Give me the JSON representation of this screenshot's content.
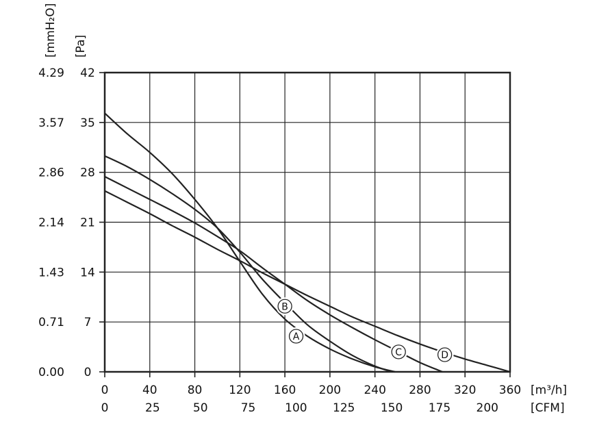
{
  "chart_data": {
    "type": "line",
    "x_unit_primary": "[m³/h]",
    "x_unit_secondary": "[CFM]",
    "y_unit_primary": "[Pa]",
    "y_unit_secondary": "[mmH₂O]",
    "xlim": [
      0,
      360
    ],
    "ylim": [
      0,
      42
    ],
    "grid": true,
    "x_ticks_primary": [
      "0",
      "40",
      "80",
      "120",
      "160",
      "200",
      "240",
      "280",
      "320",
      "360"
    ],
    "x_ticks_primary_values": [
      0,
      40,
      80,
      120,
      160,
      200,
      240,
      280,
      320,
      360
    ],
    "x_ticks_secondary": [
      "0",
      "25",
      "50",
      "75",
      "100",
      "125",
      "150",
      "175",
      "200"
    ],
    "x_ticks_secondary_values": [
      0,
      25,
      50,
      75,
      100,
      125,
      150,
      175,
      200
    ],
    "y_ticks_primary": [
      "0",
      "7",
      "14",
      "21",
      "28",
      "35",
      "42"
    ],
    "y_ticks_primary_values": [
      0,
      7,
      14,
      21,
      28,
      35,
      42
    ],
    "y_ticks_secondary": [
      "0.00",
      "0.71",
      "1.43",
      "2.14",
      "2.86",
      "3.57",
      "4.29"
    ],
    "series": [
      {
        "name": "A",
        "x": [
          0,
          20,
          40,
          60,
          80,
          100,
          120,
          140,
          160,
          180,
          200,
          220,
          240,
          258
        ],
        "y": [
          36.3,
          33.4,
          30.8,
          27.8,
          24.2,
          20.2,
          15.5,
          10.9,
          7.4,
          5.0,
          3.2,
          1.8,
          0.7,
          0
        ]
      },
      {
        "name": "B",
        "x": [
          0,
          20,
          40,
          60,
          80,
          100,
          120,
          140,
          160,
          180,
          200,
          220,
          240,
          255
        ],
        "y": [
          30.3,
          28.8,
          27.0,
          25.0,
          22.8,
          20.2,
          16.8,
          13.0,
          9.7,
          6.6,
          4.3,
          2.3,
          0.8,
          0
        ]
      },
      {
        "name": "C",
        "x": [
          0,
          20,
          40,
          60,
          80,
          100,
          120,
          140,
          160,
          180,
          200,
          220,
          240,
          260,
          280,
          300
        ],
        "y": [
          27.4,
          25.8,
          24.2,
          22.6,
          20.9,
          19.0,
          17.0,
          14.6,
          12.3,
          10.0,
          8.0,
          6.2,
          4.5,
          2.9,
          1.3,
          0
        ]
      },
      {
        "name": "D",
        "x": [
          0,
          20,
          40,
          60,
          80,
          100,
          120,
          140,
          160,
          180,
          200,
          220,
          240,
          260,
          280,
          300,
          320,
          340,
          360
        ],
        "y": [
          25.4,
          23.8,
          22.2,
          20.5,
          18.9,
          17.2,
          15.6,
          13.9,
          12.3,
          10.7,
          9.2,
          7.7,
          6.4,
          5.1,
          3.9,
          2.8,
          1.8,
          0.9,
          0
        ]
      }
    ],
    "curve_labels": [
      {
        "series": "A",
        "text": "Ⓐ",
        "x": 170,
        "y": 5.0
      },
      {
        "series": "B",
        "text": "Ⓑ",
        "x": 160,
        "y": 9.2
      },
      {
        "series": "C",
        "text": "Ⓒ",
        "x": 261,
        "y": 2.8
      },
      {
        "series": "D",
        "text": "Ⓓ",
        "x": 302,
        "y": 2.4
      }
    ],
    "colors": {
      "line": "#222222",
      "grid": "#222222",
      "text": "#111111"
    }
  }
}
